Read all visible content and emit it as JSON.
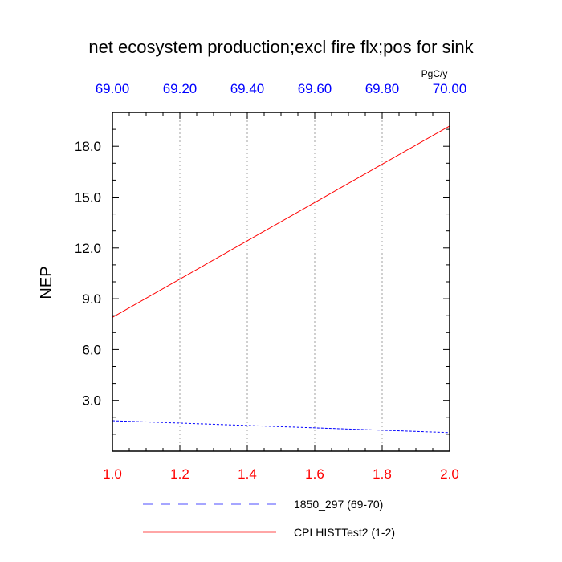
{
  "chart_data": {
    "type": "line",
    "title": "net ecosystem production;excl fire flx;pos for sink",
    "top_axis_unit": "PgC/y",
    "ylabel": "NEP",
    "xlabel": "",
    "grid": "vertical dotted",
    "legend_position": "bottom",
    "xlim": [
      1.0,
      2.0
    ],
    "ylim": [
      0.0,
      20.0
    ],
    "x_ticks": [
      "1.0",
      "1.2",
      "1.4",
      "1.6",
      "1.8",
      "2.0"
    ],
    "x_tick_values": [
      1.0,
      1.2,
      1.4,
      1.6,
      1.8,
      2.0
    ],
    "x_tick_color": "#ff0000",
    "top_xlim": [
      69.0,
      70.0
    ],
    "top_ticks": [
      "69.00",
      "69.20",
      "69.40",
      "69.60",
      "69.80",
      "70.00"
    ],
    "top_tick_values": [
      69.0,
      69.2,
      69.4,
      69.6,
      69.8,
      70.0
    ],
    "top_tick_color": "#0000ff",
    "y_ticks": [
      "3.0",
      "6.0",
      "9.0",
      "12.0",
      "15.0",
      "18.0"
    ],
    "y_tick_values": [
      3.0,
      6.0,
      9.0,
      12.0,
      15.0,
      18.0
    ],
    "series": [
      {
        "name": "1850_297 (69-70)",
        "axis": "top",
        "x": [
          69.0,
          70.0
        ],
        "y": [
          1.8,
          1.1
        ],
        "color": "#0000ff",
        "dash": "dashed"
      },
      {
        "name": "CPLHISTTest2 (1-2)",
        "axis": "bottom",
        "x": [
          1.0,
          2.0
        ],
        "y": [
          7.9,
          19.2
        ],
        "color": "#ff0000",
        "dash": "solid"
      }
    ]
  }
}
